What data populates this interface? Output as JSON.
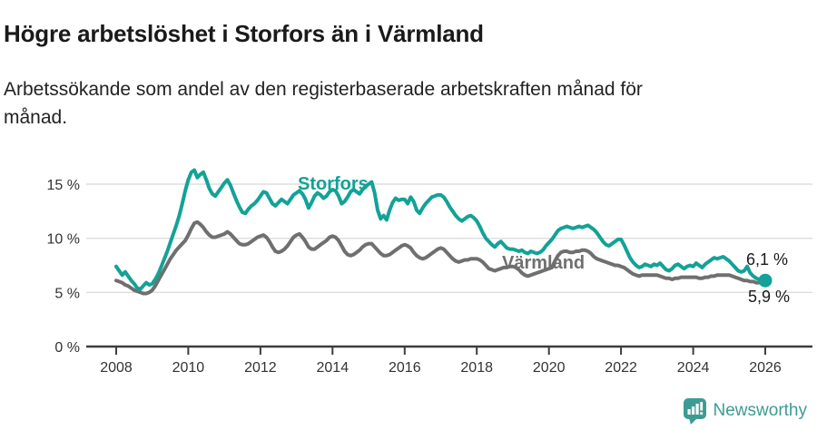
{
  "header": {
    "title": "Högre arbetslöshet i Storfors än i Värmland",
    "subtitle_line1": "Arbetssökande som andel av den registerbaserade arbetskraften månad för",
    "subtitle_line2": "månad."
  },
  "chart_data": {
    "type": "line",
    "x_start_year": 2008,
    "x_end_year": 2026,
    "points_per_year": 12,
    "x_ticks": [
      "2008",
      "2010",
      "2012",
      "2014",
      "2016",
      "2018",
      "2020",
      "2022",
      "2024",
      "2026"
    ],
    "y_ticks": [
      {
        "value": 0,
        "label": "0 %"
      },
      {
        "value": 5,
        "label": "5 %"
      },
      {
        "value": 10,
        "label": "10 %"
      },
      {
        "value": 15,
        "label": "15 %"
      }
    ],
    "ylim": [
      0,
      16.5
    ],
    "grid": "horizontal",
    "legend_position": "inline-labels",
    "series": [
      {
        "name": "Storfors",
        "color": "#13a297",
        "end_label": "6,1 %",
        "end_dot": true,
        "values": [
          7.4,
          7.0,
          6.6,
          6.9,
          6.5,
          6.1,
          5.8,
          5.4,
          5.3,
          5.6,
          5.9,
          5.7,
          5.8,
          6.2,
          6.7,
          7.4,
          8.1,
          8.8,
          9.6,
          10.4,
          11.2,
          12.1,
          13.2,
          14.4,
          15.4,
          16.1,
          16.3,
          15.6,
          15.9,
          16.1,
          15.4,
          14.6,
          14.1,
          13.9,
          14.3,
          14.7,
          15.1,
          15.4,
          14.9,
          14.2,
          13.5,
          12.9,
          12.4,
          12.3,
          12.7,
          13.0,
          13.2,
          13.5,
          13.9,
          14.3,
          14.2,
          13.7,
          13.2,
          13.0,
          13.3,
          13.6,
          13.4,
          13.2,
          13.6,
          14.0,
          14.2,
          14.4,
          14.1,
          13.6,
          12.8,
          13.3,
          13.9,
          14.2,
          14.0,
          13.7,
          13.9,
          14.3,
          14.5,
          14.4,
          13.9,
          13.2,
          13.4,
          13.8,
          14.3,
          14.5,
          14.3,
          14.1,
          14.5,
          14.8,
          15.0,
          15.2,
          14.2,
          12.6,
          11.8,
          12.1,
          11.7,
          12.6,
          13.3,
          13.7,
          13.5,
          13.6,
          13.6,
          13.2,
          13.8,
          13.4,
          12.6,
          12.3,
          12.8,
          13.2,
          13.5,
          13.8,
          13.9,
          14.0,
          14.0,
          13.8,
          13.4,
          12.9,
          12.5,
          12.1,
          11.8,
          11.6,
          11.8,
          12.0,
          12.1,
          11.9,
          11.6,
          11.1,
          10.5,
          10.0,
          9.7,
          9.4,
          9.2,
          9.5,
          9.7,
          9.4,
          9.1,
          9.0,
          9.0,
          8.9,
          8.8,
          8.9,
          8.7,
          8.6,
          8.8,
          8.7,
          8.6,
          8.7,
          8.9,
          9.3,
          9.6,
          9.9,
          10.3,
          10.7,
          10.9,
          11.0,
          11.1,
          11.0,
          10.9,
          11.0,
          11.1,
          11.0,
          11.1,
          11.2,
          11.0,
          10.8,
          10.5,
          10.1,
          9.7,
          9.4,
          9.3,
          9.5,
          9.7,
          9.9,
          9.9,
          9.4,
          8.8,
          8.2,
          7.8,
          7.5,
          7.3,
          7.4,
          7.6,
          7.5,
          7.4,
          7.6,
          7.5,
          7.7,
          7.4,
          7.1,
          7.0,
          7.2,
          7.5,
          7.6,
          7.4,
          7.2,
          7.4,
          7.5,
          7.4,
          7.7,
          7.5,
          7.3,
          7.6,
          7.8,
          8.0,
          8.2,
          8.1,
          8.2,
          8.3,
          8.1,
          7.9,
          7.6,
          7.3,
          7.0,
          6.9,
          7.0,
          7.4,
          6.8,
          6.5,
          6.3,
          6.2,
          6.1,
          6.1
        ]
      },
      {
        "name": "Värmland",
        "color": "#6f6f6f",
        "end_label": "5,9 %",
        "end_dot": false,
        "values": [
          6.1,
          6.0,
          5.9,
          5.7,
          5.6,
          5.4,
          5.2,
          5.1,
          5.0,
          4.9,
          4.9,
          5.0,
          5.2,
          5.6,
          6.1,
          6.6,
          7.1,
          7.6,
          8.1,
          8.5,
          8.9,
          9.2,
          9.5,
          9.8,
          10.3,
          10.9,
          11.4,
          11.5,
          11.3,
          11.0,
          10.6,
          10.3,
          10.1,
          10.1,
          10.2,
          10.3,
          10.4,
          10.6,
          10.4,
          10.1,
          9.8,
          9.5,
          9.4,
          9.4,
          9.5,
          9.7,
          9.9,
          10.1,
          10.2,
          10.3,
          10.1,
          9.7,
          9.2,
          8.8,
          8.7,
          8.8,
          9.0,
          9.3,
          9.7,
          10.1,
          10.3,
          10.4,
          10.1,
          9.7,
          9.2,
          9.0,
          9.0,
          9.2,
          9.4,
          9.6,
          9.8,
          10.1,
          10.2,
          10.1,
          9.8,
          9.3,
          8.8,
          8.5,
          8.4,
          8.5,
          8.7,
          8.9,
          9.2,
          9.4,
          9.5,
          9.5,
          9.2,
          8.9,
          8.6,
          8.4,
          8.4,
          8.5,
          8.7,
          8.9,
          9.1,
          9.3,
          9.4,
          9.3,
          9.1,
          8.7,
          8.4,
          8.2,
          8.1,
          8.2,
          8.4,
          8.6,
          8.8,
          9.0,
          9.1,
          9.0,
          8.7,
          8.4,
          8.1,
          7.9,
          7.8,
          7.9,
          8.0,
          8.0,
          8.1,
          8.1,
          8.1,
          8.0,
          7.8,
          7.5,
          7.2,
          7.1,
          7.0,
          7.1,
          7.2,
          7.3,
          7.3,
          7.4,
          7.4,
          7.3,
          7.1,
          6.8,
          6.6,
          6.5,
          6.6,
          6.7,
          6.8,
          6.9,
          7.0,
          7.1,
          7.2,
          7.3,
          7.9,
          8.4,
          8.7,
          8.8,
          8.8,
          8.7,
          8.7,
          8.8,
          8.8,
          8.9,
          8.9,
          8.8,
          8.6,
          8.3,
          8.1,
          8.0,
          7.9,
          7.8,
          7.7,
          7.6,
          7.5,
          7.5,
          7.4,
          7.3,
          7.1,
          6.9,
          6.7,
          6.6,
          6.5,
          6.6,
          6.6,
          6.6,
          6.6,
          6.6,
          6.6,
          6.5,
          6.4,
          6.3,
          6.3,
          6.2,
          6.3,
          6.3,
          6.4,
          6.4,
          6.4,
          6.4,
          6.4,
          6.4,
          6.3,
          6.3,
          6.4,
          6.4,
          6.5,
          6.5,
          6.6,
          6.6,
          6.6,
          6.6,
          6.6,
          6.5,
          6.4,
          6.3,
          6.2,
          6.1,
          6.1,
          6.0,
          6.0,
          5.9,
          5.9,
          5.9,
          5.9
        ]
      }
    ]
  },
  "footer": {
    "brand": "Newsworthy"
  },
  "colors": {
    "storfors_line": "#13a297",
    "varmland_line": "#6f6f6f",
    "gridline": "#dddddd",
    "axis": "#3d3d3d",
    "tick_text": "#333333",
    "logo_teal": "#3e9b94",
    "background": "#ffffff"
  }
}
